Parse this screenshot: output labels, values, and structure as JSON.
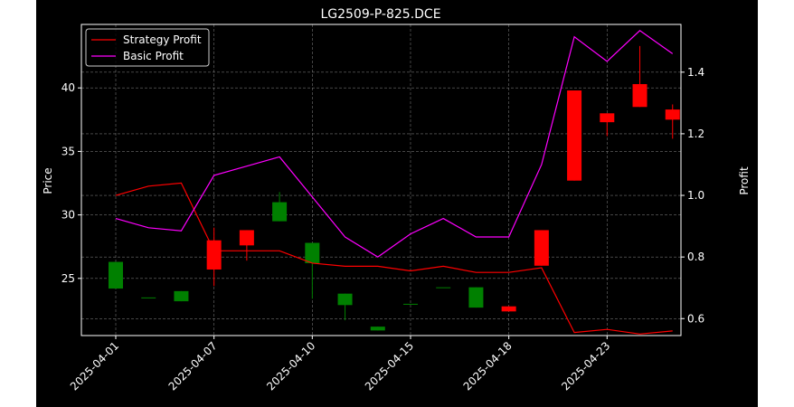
{
  "chart_data": {
    "type": "candlestick",
    "title": "LG2509-P-825.DCE",
    "ylabel": "Price",
    "y2label": "Profit",
    "xlabel": "",
    "background": "#000000",
    "grid": true,
    "legend_position": "top-left",
    "x_tick_labels": [
      "2025-04-01",
      "2025-04-07",
      "2025-04-10",
      "2025-04-15",
      "2025-04-18",
      "2025-04-23"
    ],
    "x_tick_indices": [
      0,
      3,
      6,
      9,
      12,
      15
    ],
    "y_ticks": [
      25,
      30,
      35,
      40
    ],
    "y_ticks_labels": [
      "25",
      "30",
      "35",
      "40"
    ],
    "ylim": [
      20.5,
      45
    ],
    "y2_ticks": [
      0.6,
      0.8,
      1.0,
      1.2,
      1.4
    ],
    "y2_ticks_labels": [
      "0.6",
      "0.8",
      "1.0",
      "1.2",
      "1.4"
    ],
    "y2lim": [
      0.545,
      1.555
    ],
    "up_color": "#008000",
    "down_color": "#ff0000",
    "candles": [
      {
        "i": 0,
        "open": 24.2,
        "close": 26.3,
        "high": 26.3,
        "low": 24.2
      },
      {
        "i": 1,
        "open": 23.5,
        "close": 23.5,
        "high": 23.5,
        "low": 23.5
      },
      {
        "i": 2,
        "open": 23.2,
        "close": 24.0,
        "high": 24.0,
        "low": 23.2
      },
      {
        "i": 3,
        "open": 28.0,
        "close": 25.7,
        "high": 29.0,
        "low": 24.4
      },
      {
        "i": 4,
        "open": 28.8,
        "close": 27.6,
        "high": 28.8,
        "low": 26.4
      },
      {
        "i": 5,
        "open": 29.5,
        "close": 31.0,
        "high": 31.8,
        "low": 29.5
      },
      {
        "i": 6,
        "open": 26.2,
        "close": 27.8,
        "high": 27.8,
        "low": 23.4
      },
      {
        "i": 7,
        "open": 22.9,
        "close": 23.8,
        "high": 23.8,
        "low": 21.7
      },
      {
        "i": 8,
        "open": 20.9,
        "close": 21.2,
        "high": 21.2,
        "low": 20.9
      },
      {
        "i": 9,
        "open": 23.0,
        "close": 23.0,
        "high": 23.0,
        "low": 23.0
      },
      {
        "i": 10,
        "open": 24.3,
        "close": 24.3,
        "high": 24.3,
        "low": 24.3
      },
      {
        "i": 11,
        "open": 22.7,
        "close": 24.3,
        "high": 24.3,
        "low": 22.7
      },
      {
        "i": 12,
        "open": 22.8,
        "close": 22.4,
        "high": 22.8,
        "low": 22.4
      },
      {
        "i": 13,
        "open": 28.8,
        "close": 26.0,
        "high": 28.8,
        "low": 26.0
      },
      {
        "i": 14,
        "open": 39.8,
        "close": 32.7,
        "high": 39.8,
        "low": 32.7
      },
      {
        "i": 15,
        "open": 38.0,
        "close": 37.3,
        "high": 38.0,
        "low": 36.2
      },
      {
        "i": 16,
        "open": 40.3,
        "close": 38.5,
        "high": 43.3,
        "low": 38.5
      },
      {
        "i": 17,
        "open": 38.3,
        "close": 37.5,
        "high": 38.7,
        "low": 36.0
      }
    ],
    "series": [
      {
        "name": "Strategy Profit",
        "color": "#ff0000",
        "axis": "right",
        "values": [
          1.0,
          1.03,
          1.04,
          0.82,
          0.82,
          0.82,
          0.78,
          0.77,
          0.77,
          0.755,
          0.77,
          0.75,
          0.75,
          0.765,
          0.555,
          0.565,
          0.55,
          0.56
        ]
      },
      {
        "name": "Basic Profit",
        "color": "#ff00ff",
        "axis": "right",
        "values": [
          0.925,
          0.895,
          0.885,
          1.065,
          1.095,
          1.125,
          0.995,
          0.865,
          0.8,
          0.875,
          0.925,
          0.865,
          0.865,
          1.1,
          1.515,
          1.435,
          1.535,
          1.46
        ]
      }
    ]
  }
}
